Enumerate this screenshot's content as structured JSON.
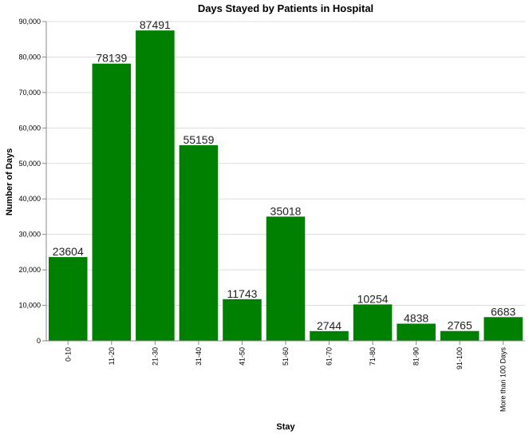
{
  "chart_data": {
    "type": "bar",
    "title": "Days Stayed by Patients in Hospital",
    "xlabel": "Stay",
    "ylabel": "Number of Days",
    "categories": [
      "0-10",
      "11-20",
      "21-30",
      "31-40",
      "41-50",
      "51-60",
      "61-70",
      "71-80",
      "81-90",
      "91-100",
      "More than 100 Days"
    ],
    "values": [
      23604,
      78139,
      87491,
      55159,
      11743,
      35018,
      2744,
      10254,
      4838,
      2765,
      6683
    ],
    "ylim": [
      0,
      90000
    ],
    "yticks": [
      0,
      10000,
      20000,
      30000,
      40000,
      50000,
      60000,
      70000,
      80000,
      90000
    ],
    "ytick_labels": [
      "0",
      "10,000",
      "20,000",
      "30,000",
      "40,000",
      "50,000",
      "60,000",
      "70,000",
      "80,000",
      "90,000"
    ],
    "grid": true,
    "bar_color": "#008000"
  }
}
